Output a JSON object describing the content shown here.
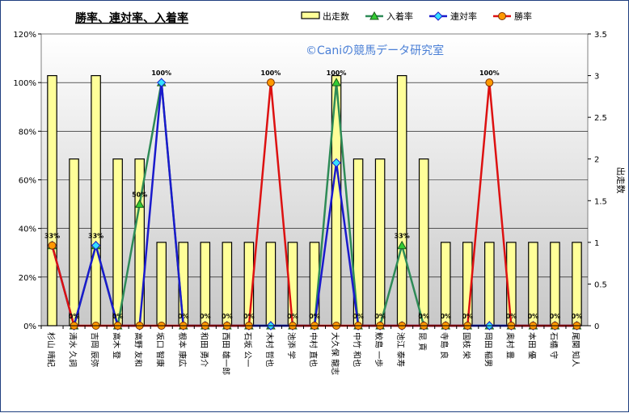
{
  "chart_data": {
    "type": "bar+line",
    "title": "勝率、連対率、入着率",
    "watermark": "©Caniの競馬データ研究室",
    "y2label": "出走数",
    "y1ticks": [
      "0%",
      "20%",
      "40%",
      "60%",
      "80%",
      "100%",
      "120%"
    ],
    "y2ticks": [
      "0",
      "0.5",
      "1",
      "1.5",
      "2",
      "2.5",
      "3",
      "3.5"
    ],
    "ylim": [
      0,
      1.2
    ],
    "y2lim": [
      0,
      3.5
    ],
    "grid": true,
    "legend_position": "top",
    "categories": [
      "杉山 晴紀",
      "清水 久詞",
      "吉岡 辰弥",
      "高木 登",
      "高野 友和",
      "坂口 智康",
      "根本 康広",
      "和田 勇介",
      "西田 雄一郎",
      "石坂 公一",
      "木村 哲也",
      "池添 学",
      "中村 直也",
      "大久保 龍志",
      "中竹 和也",
      "鮫島 一歩",
      "池江 泰寿",
      "昆 貢",
      "寺島 良",
      "国枝 栄",
      "岡田 稲男",
      "奥村 豊",
      "本田 優",
      "石橋 守",
      "尾関 知人"
    ],
    "series": [
      {
        "name": "出走数",
        "kind": "bar",
        "color": "#ffff99",
        "values": [
          3,
          2,
          3,
          2,
          2,
          1,
          1,
          1,
          1,
          1,
          1,
          1,
          1,
          3,
          2,
          2,
          3,
          2,
          1,
          1,
          1,
          1,
          1,
          1,
          1
        ]
      },
      {
        "name": "入着率",
        "kind": "line",
        "color": "#2e8b57",
        "marker": "triangle",
        "values": [
          0.33,
          0,
          0.33,
          0,
          0.5,
          1,
          0,
          0,
          0,
          0,
          0,
          0,
          0,
          1,
          0,
          0,
          0.33,
          0,
          0,
          0,
          0,
          0,
          0,
          0,
          0
        ]
      },
      {
        "name": "連対率",
        "kind": "line",
        "color": "#1a1acc",
        "marker": "diamond",
        "values": [
          0.33,
          0,
          0.33,
          0,
          0,
          1,
          0,
          0,
          0,
          0,
          0,
          0,
          0,
          0.67,
          0,
          0,
          0,
          0,
          0,
          0,
          0,
          0,
          0,
          0,
          0
        ]
      },
      {
        "name": "勝率",
        "kind": "line",
        "color": "#dd1111",
        "marker": "circle",
        "values": [
          0.33,
          0,
          0,
          0,
          0,
          0,
          0,
          0,
          0,
          0,
          1,
          0,
          0,
          0,
          0,
          0,
          0,
          0,
          0,
          0,
          1,
          0,
          0,
          0,
          0
        ]
      }
    ],
    "data_labels": [
      {
        "i": 0,
        "text": "33%",
        "series": "勝率"
      },
      {
        "i": 1,
        "text": "0%",
        "series": "勝率"
      },
      {
        "i": 2,
        "text": "33%",
        "series": "連対率"
      },
      {
        "i": 3,
        "text": "0%",
        "series": "勝率"
      },
      {
        "i": 4,
        "text": "50%",
        "series": "入着率"
      },
      {
        "i": 5,
        "text": "100%",
        "series": "連対率"
      },
      {
        "i": 6,
        "text": "0%",
        "series": "勝率"
      },
      {
        "i": 7,
        "text": "0%",
        "series": "勝率"
      },
      {
        "i": 8,
        "text": "0%",
        "series": "勝率"
      },
      {
        "i": 9,
        "text": "0%",
        "series": "勝率"
      },
      {
        "i": 10,
        "text": "100%",
        "series": "勝率"
      },
      {
        "i": 11,
        "text": "0%",
        "series": "勝率"
      },
      {
        "i": 12,
        "text": "0%",
        "series": "勝率"
      },
      {
        "i": 13,
        "text": "100%",
        "series": "入着率"
      },
      {
        "i": 14,
        "text": "0%",
        "series": "勝率"
      },
      {
        "i": 15,
        "text": "0%",
        "series": "勝率"
      },
      {
        "i": 16,
        "text": "33%",
        "series": "入着率"
      },
      {
        "i": 17,
        "text": "0%",
        "series": "勝率"
      },
      {
        "i": 18,
        "text": "0%",
        "series": "勝率"
      },
      {
        "i": 19,
        "text": "0%",
        "series": "勝率"
      },
      {
        "i": 20,
        "text": "100%",
        "series": "勝率"
      },
      {
        "i": 21,
        "text": "0%",
        "series": "勝率"
      },
      {
        "i": 22,
        "text": "0%",
        "series": "勝率"
      },
      {
        "i": 23,
        "text": "0%",
        "series": "勝率"
      },
      {
        "i": 24,
        "text": "0%",
        "series": "勝率"
      }
    ]
  }
}
